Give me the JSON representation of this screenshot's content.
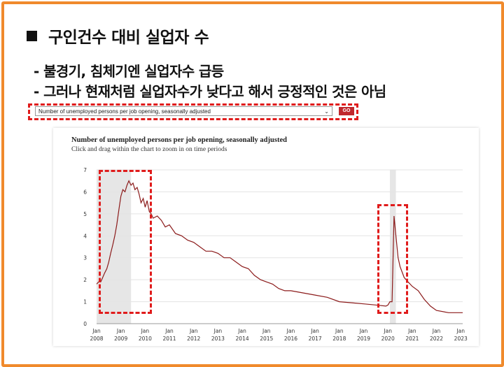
{
  "slide": {
    "heading": "구인건수 대비 실업자 수",
    "points": [
      "- 불경기, 침체기엔 실업자수 급등",
      "- 그러나 현재처럼 실업자수가 낮다고 해서 긍정적인 것은 아님"
    ]
  },
  "selector": {
    "selected": "Number of unemployed persons per job opening, seasonally adjusted",
    "go_label": "GO"
  },
  "colors": {
    "frame": "#f08a2c",
    "highlight": "#e01b1b",
    "line": "#8b1a1a",
    "recession": "#e6e6e6"
  },
  "chart_data": {
    "type": "line",
    "title": "Number of unemployed persons per job opening, seasonally adjusted",
    "subtitle": "Click and drag within the chart to zoom in on time periods",
    "ylim": [
      0,
      7
    ],
    "yticks": [
      "0",
      "1",
      "2",
      "3",
      "4",
      "5",
      "6",
      "7"
    ],
    "xlim": [
      2008.0,
      2023.08
    ],
    "xticks": [
      {
        "month": "Jan",
        "year": "2008"
      },
      {
        "month": "Jan",
        "year": "2009"
      },
      {
        "month": "Jan",
        "year": "2010"
      },
      {
        "month": "Jan",
        "year": "2011"
      },
      {
        "month": "Jan",
        "year": "2012"
      },
      {
        "month": "Jan",
        "year": "2013"
      },
      {
        "month": "Jan",
        "year": "2014"
      },
      {
        "month": "Jan",
        "year": "2015"
      },
      {
        "month": "Jan",
        "year": "2016"
      },
      {
        "month": "Jan",
        "year": "2017"
      },
      {
        "month": "Jan",
        "year": "2018"
      },
      {
        "month": "Jan",
        "year": "2019"
      },
      {
        "month": "Jan",
        "year": "2020"
      },
      {
        "month": "Jan",
        "year": "2021"
      },
      {
        "month": "Jan",
        "year": "2022"
      },
      {
        "month": "Jan",
        "year": "2023"
      }
    ],
    "grid": true,
    "recessions": [
      [
        2008.0,
        2009.42
      ],
      [
        2020.08,
        2020.33
      ]
    ],
    "series": [
      {
        "x": [
          2008.0,
          2008.08,
          2008.17,
          2008.25,
          2008.33,
          2008.42,
          2008.5,
          2008.58,
          2008.67,
          2008.75,
          2008.83,
          2008.92,
          2009.0,
          2009.08,
          2009.17,
          2009.25,
          2009.33,
          2009.42,
          2009.5,
          2009.58,
          2009.67,
          2009.75,
          2009.83,
          2009.92,
          2010.0,
          2010.08,
          2010.17,
          2010.25,
          2010.33,
          2010.5,
          2010.67,
          2010.83,
          2011.0,
          2011.25,
          2011.5,
          2011.75,
          2012.0,
          2012.25,
          2012.5,
          2012.75,
          2013.0,
          2013.25,
          2013.5,
          2013.75,
          2014.0,
          2014.25,
          2014.5,
          2014.75,
          2015.0,
          2015.25,
          2015.5,
          2015.75,
          2016.0,
          2016.5,
          2017.0,
          2017.5,
          2018.0,
          2018.5,
          2019.0,
          2019.5,
          2019.92,
          2020.0,
          2020.08,
          2020.17,
          2020.25,
          2020.33,
          2020.42,
          2020.5,
          2020.67,
          2020.83,
          2021.0,
          2021.25,
          2021.5,
          2021.75,
          2022.0,
          2022.5,
          2023.0,
          2023.08
        ],
        "y": [
          1.8,
          1.9,
          1.9,
          2.1,
          2.3,
          2.5,
          2.8,
          3.2,
          3.6,
          4.0,
          4.5,
          5.2,
          5.8,
          6.1,
          6.0,
          6.3,
          6.5,
          6.3,
          6.4,
          6.1,
          6.2,
          5.9,
          5.5,
          5.7,
          5.3,
          5.6,
          5.1,
          5.0,
          4.8,
          4.9,
          4.7,
          4.4,
          4.5,
          4.1,
          4.0,
          3.8,
          3.7,
          3.5,
          3.3,
          3.3,
          3.2,
          3.0,
          3.0,
          2.8,
          2.6,
          2.5,
          2.2,
          2.0,
          1.9,
          1.8,
          1.6,
          1.5,
          1.5,
          1.4,
          1.3,
          1.2,
          1.0,
          0.95,
          0.9,
          0.85,
          0.8,
          0.85,
          1.0,
          1.0,
          4.9,
          4.0,
          3.0,
          2.6,
          2.1,
          1.9,
          1.7,
          1.5,
          1.1,
          0.8,
          0.6,
          0.5,
          0.5,
          0.5
        ]
      }
    ]
  }
}
